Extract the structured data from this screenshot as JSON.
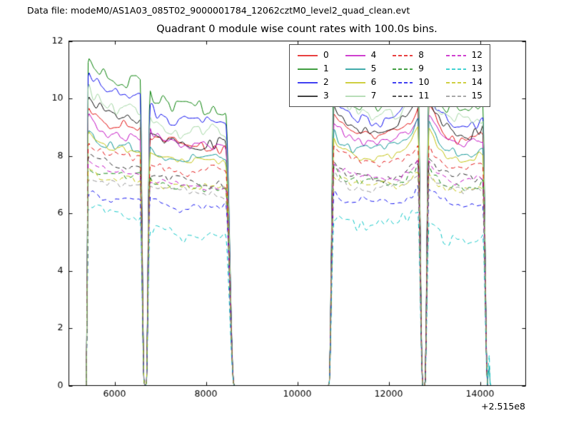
{
  "header": {
    "datafile_label": "Data file: modeM0/AS1A03_085T02_9000001784_12062cztM0_level2_quad_clean.evt"
  },
  "chart_data": {
    "type": "line",
    "title": "Quadrant 0 module wise count rates with 100.0s bins.",
    "xlabel": "",
    "ylabel": "",
    "x_offset_label": "+2.515e8",
    "xlim": [
      5000,
      15000
    ],
    "ylim": [
      0,
      12
    ],
    "x_ticks": [
      6000,
      8000,
      10000,
      12000,
      14000
    ],
    "y_ticks": [
      0,
      2,
      4,
      6,
      8,
      10,
      12
    ],
    "grid": false,
    "bin_seconds": 100.0,
    "legend": {
      "location": "upper center",
      "columns": 4,
      "frame": true
    },
    "time_segments": [
      {
        "x_start": 5385,
        "x_full": 5425,
        "x_fade": 6560,
        "x_end": 6650,
        "bump_start": 0.07,
        "bump_end": 0.0
      },
      {
        "x_start": 6695,
        "x_full": 6775,
        "x_fade": 8430,
        "x_end": 8615,
        "bump_start": 0.06,
        "bump_end": 0.0
      },
      {
        "x_start": 10695,
        "x_full": 10805,
        "x_fade": 12640,
        "x_end": 12745,
        "bump_start": 0.1,
        "bump_end": 0.13
      },
      {
        "x_start": 12795,
        "x_full": 12885,
        "x_fade": 14060,
        "x_end": 14165,
        "bump_start": 0.16,
        "bump_end": 0.04
      }
    ],
    "end_spike": {
      "x_start": 14168,
      "x_peak": 14196,
      "x_end": 14224,
      "heights": {
        "13": 1.35,
        "5": 0.85
      }
    },
    "series": [
      {
        "name": "0",
        "color": "#e00000",
        "linestyle": "solid",
        "levels": [
          9.0,
          8.3,
          8.6,
          8.4
        ],
        "noise": 0.16
      },
      {
        "name": "1",
        "color": "#007f00",
        "linestyle": "solid",
        "levels": [
          10.6,
          9.6,
          9.7,
          9.4
        ],
        "noise": 0.25
      },
      {
        "name": "2",
        "color": "#0000ee",
        "linestyle": "solid",
        "levels": [
          10.1,
          9.2,
          9.1,
          8.9
        ],
        "noise": 0.2
      },
      {
        "name": "3",
        "color": "#000000",
        "linestyle": "solid",
        "levels": [
          9.4,
          8.5,
          8.8,
          8.6
        ],
        "noise": 0.2
      },
      {
        "name": "4",
        "color": "#bf00bf",
        "linestyle": "solid",
        "levels": [
          8.7,
          8.3,
          8.4,
          8.2
        ],
        "noise": 0.15
      },
      {
        "name": "5",
        "color": "#008f8f",
        "linestyle": "solid",
        "levels": [
          8.3,
          7.9,
          8.1,
          7.9
        ],
        "noise": 0.15
      },
      {
        "name": "6",
        "color": "#bfbf00",
        "linestyle": "solid",
        "levels": [
          8.15,
          7.8,
          7.95,
          7.8
        ],
        "noise": 0.13
      },
      {
        "name": "7",
        "color": "#9fd49f",
        "linestyle": "solid",
        "levels": [
          9.7,
          8.8,
          9.3,
          9.0
        ],
        "noise": 0.24
      },
      {
        "name": "8",
        "color": "#e00000",
        "linestyle": "dashed",
        "levels": [
          8.0,
          7.5,
          7.7,
          7.5
        ],
        "noise": 0.13
      },
      {
        "name": "9",
        "color": "#007f00",
        "linestyle": "dashed",
        "levels": [
          7.3,
          6.9,
          7.0,
          6.9
        ],
        "noise": 0.13
      },
      {
        "name": "10",
        "color": "#0000ee",
        "linestyle": "dashed",
        "levels": [
          6.5,
          6.2,
          6.35,
          6.2
        ],
        "noise": 0.13
      },
      {
        "name": "11",
        "color": "#1a1a1a",
        "linestyle": "dashed",
        "levels": [
          7.6,
          7.1,
          7.25,
          7.1
        ],
        "noise": 0.13
      },
      {
        "name": "12",
        "color": "#bf00bf",
        "linestyle": "dashed",
        "levels": [
          7.45,
          7.0,
          7.1,
          7.0
        ],
        "noise": 0.13
      },
      {
        "name": "13",
        "color": "#00c3c3",
        "linestyle": "dashed",
        "levels": [
          5.95,
          5.25,
          5.6,
          5.05
        ],
        "noise": 0.22
      },
      {
        "name": "14",
        "color": "#bfbf00",
        "linestyle": "dashed",
        "levels": [
          7.1,
          6.8,
          6.9,
          6.75
        ],
        "noise": 0.13
      },
      {
        "name": "15",
        "color": "#8c8c8c",
        "linestyle": "dashed",
        "levels": [
          7.0,
          6.65,
          6.8,
          6.65
        ],
        "noise": 0.13
      }
    ]
  }
}
